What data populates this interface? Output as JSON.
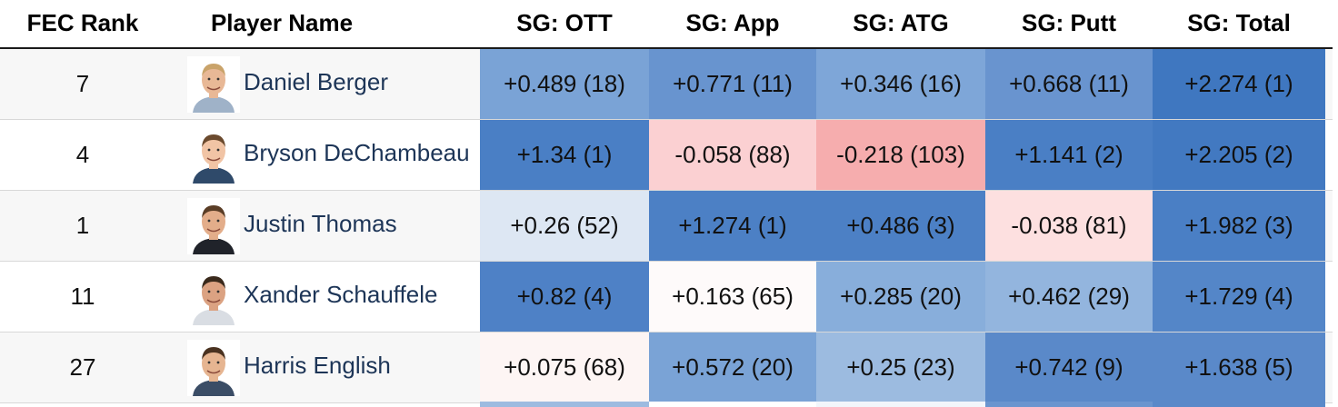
{
  "headers": {
    "rank": "FEC Rank",
    "player": "Player Name",
    "ott": "SG: OTT",
    "app": "SG: App",
    "atg": "SG: ATG",
    "putt": "SG: Putt",
    "total": "SG: Total"
  },
  "rows": [
    {
      "rank": "7",
      "name": "Daniel Berger",
      "ott": "+0.489 (18)",
      "app": "+0.771 (11)",
      "atg": "+0.346 (16)",
      "putt": "+0.668 (11)",
      "total": "+2.274 (1)",
      "colors": {
        "ott": "#7aa3d6",
        "app": "#6894cf",
        "atg": "#7ea6d8",
        "putt": "#6994cf",
        "total": "#3f77c0"
      }
    },
    {
      "rank": "4",
      "name": "Bryson DeChambeau",
      "ott": "+1.34 (1)",
      "app": "-0.058 (88)",
      "atg": "-0.218 (103)",
      "putt": "+1.141 (2)",
      "total": "+2.205 (2)",
      "colors": {
        "ott": "#4a7fc5",
        "app": "#fbd0d2",
        "atg": "#f6adae",
        "putt": "#4a7fc5",
        "total": "#4279c1"
      }
    },
    {
      "rank": "1",
      "name": "Justin Thomas",
      "ott": "+0.26 (52)",
      "app": "+1.274 (1)",
      "atg": "+0.486 (3)",
      "putt": "-0.038 (81)",
      "total": "+1.982 (3)",
      "colors": {
        "ott": "#dde7f3",
        "app": "#4c80c5",
        "atg": "#4c80c5",
        "putt": "#fde0e0",
        "total": "#4a7fc5"
      }
    },
    {
      "rank": "11",
      "name": "Xander Schauffele",
      "ott": "+0.82 (4)",
      "app": "+0.163 (65)",
      "atg": "+0.285 (20)",
      "putt": "+0.462 (29)",
      "total": "+1.729 (4)",
      "colors": {
        "ott": "#4e81c6",
        "app": "#fefafa",
        "atg": "#88aedb",
        "putt": "#93b5de",
        "total": "#5486c8"
      }
    },
    {
      "rank": "27",
      "name": "Harris English",
      "ott": "+0.075 (68)",
      "app": "+0.572 (20)",
      "atg": "+0.25 (23)",
      "putt": "+0.742 (9)",
      "total": "+1.638 (5)",
      "colors": {
        "ott": "#fdf5f4",
        "app": "#7aa3d6",
        "atg": "#9cbbe0",
        "putt": "#5a89c9",
        "total": "#5a89c9"
      }
    }
  ],
  "partial_row_colors": [
    "#9dbbe0",
    "#ffffff",
    "#f2f6fb",
    "#6a95cf",
    "#5a89c9"
  ]
}
